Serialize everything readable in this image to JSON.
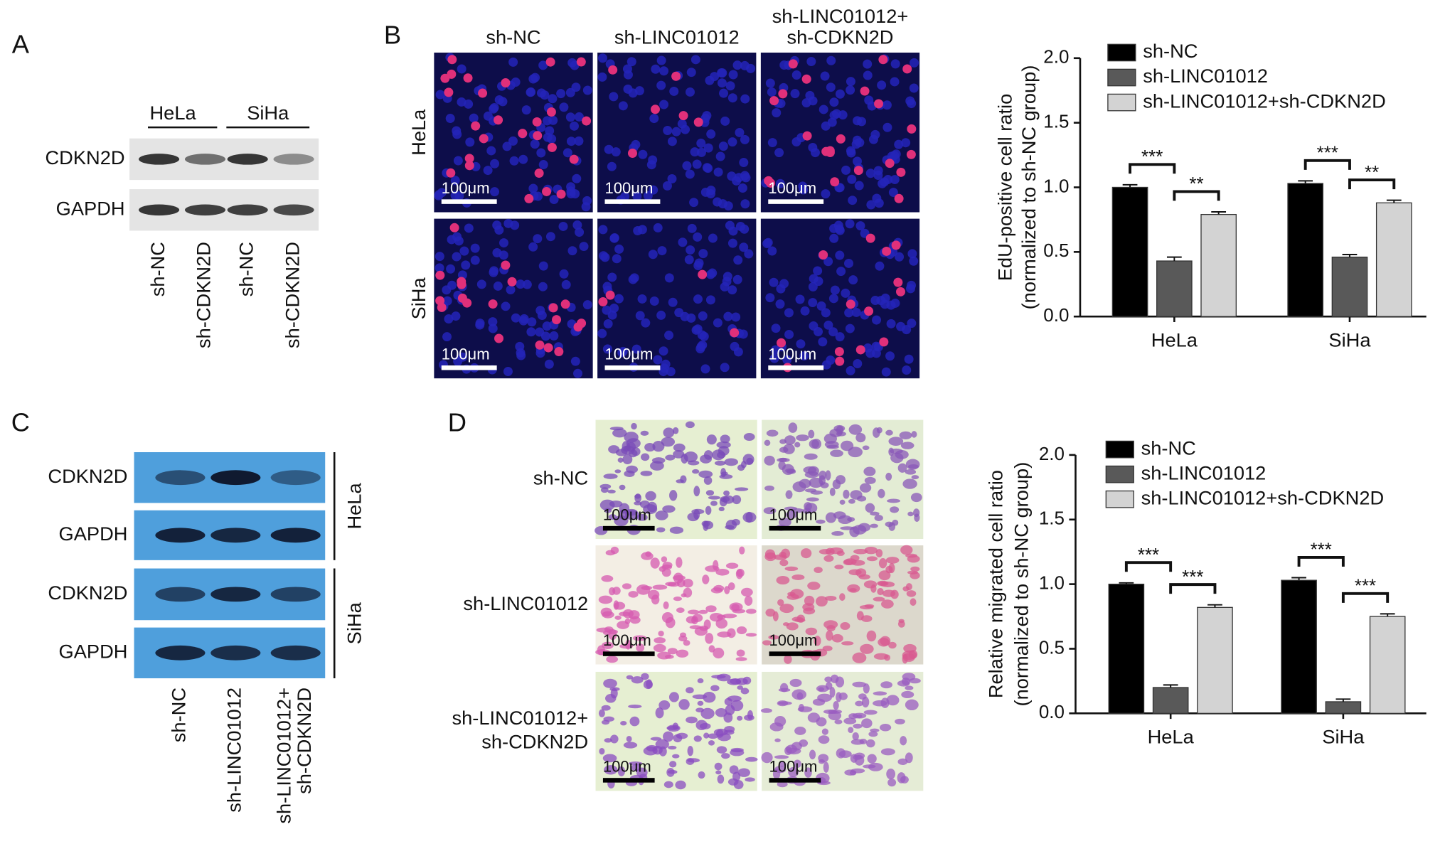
{
  "panels": {
    "a": {
      "letter": "A",
      "cell_lines": [
        "HeLa",
        "SiHa"
      ],
      "rows": [
        "CDKN2D",
        "GAPDH"
      ],
      "lanes": [
        "sh-NC",
        "sh-CDKN2D",
        "sh-NC",
        "sh-CDKN2D"
      ]
    },
    "b": {
      "letter": "B",
      "columns": [
        [
          "sh-NC"
        ],
        [
          "sh-LINC01012"
        ],
        [
          "sh-LINC01012+",
          "sh-CDKN2D"
        ]
      ],
      "rows": [
        "HeLa",
        "SiHa"
      ],
      "scale_bar": "100μm"
    },
    "c": {
      "letter": "C",
      "rows": [
        "CDKN2D",
        "GAPDH",
        "CDKN2D",
        "GAPDH"
      ],
      "groups": [
        "HeLa",
        "SiHa"
      ],
      "lanes": [
        [
          "sh-NC"
        ],
        [
          "sh-LINC01012"
        ],
        [
          "sh-LINC01012+",
          "sh-CDKN2D"
        ]
      ]
    },
    "d": {
      "letter": "D",
      "rows": [
        [
          "sh-NC"
        ],
        [
          "sh-LINC01012"
        ],
        [
          "sh-LINC01012+",
          "sh-CDKN2D"
        ]
      ],
      "scale_bar": "100μm"
    }
  },
  "chart_data": [
    {
      "type": "bar",
      "y_label": [
        "EdU-positive cell ratio",
        "(normalized to sh-NC group)"
      ],
      "categories": [
        "HeLa",
        "SiHa"
      ],
      "series": [
        {
          "name": "sh-NC",
          "color": "#000000",
          "values": [
            1.0,
            1.03
          ],
          "errors": [
            0.02,
            0.02
          ]
        },
        {
          "name": "sh-LINC01012",
          "color": "#595959",
          "values": [
            0.43,
            0.46
          ],
          "errors": [
            0.03,
            0.02
          ]
        },
        {
          "name": "sh-LINC01012+sh-CDKN2D",
          "color": "#d3d3d3",
          "values": [
            0.79,
            0.88
          ],
          "errors": [
            0.02,
            0.02
          ]
        }
      ],
      "annotations": [
        "***",
        "**",
        "***",
        "**"
      ],
      "ylim": [
        0,
        2
      ],
      "yticks": [
        {
          "value": 0,
          "label": "0.0"
        },
        {
          "value": 0.5,
          "label": "0.5"
        },
        {
          "value": 1,
          "label": "1.0"
        },
        {
          "value": 1.5,
          "label": "1.5"
        },
        {
          "value": 2,
          "label": "2.0"
        }
      ],
      "legend": "top-left"
    },
    {
      "type": "bar",
      "y_label": [
        "Relative migrated cell ratio",
        "(normalized to sh-NC group)"
      ],
      "categories": [
        "HeLa",
        "SiHa"
      ],
      "series": [
        {
          "name": "sh-NC",
          "color": "#000000",
          "values": [
            1.0,
            1.03
          ],
          "errors": [
            0.01,
            0.02
          ]
        },
        {
          "name": "sh-LINC01012",
          "color": "#595959",
          "values": [
            0.2,
            0.09
          ],
          "errors": [
            0.02,
            0.02
          ]
        },
        {
          "name": "sh-LINC01012+sh-CDKN2D",
          "color": "#d3d3d3",
          "values": [
            0.82,
            0.75
          ],
          "errors": [
            0.02,
            0.02
          ]
        }
      ],
      "annotations": [
        "***",
        "***",
        "***",
        "***"
      ],
      "ylim": [
        0,
        2
      ],
      "yticks": [
        {
          "value": 0,
          "label": "0.0"
        },
        {
          "value": 0.5,
          "label": "0.5"
        },
        {
          "value": 1,
          "label": "1.0"
        },
        {
          "value": 1.5,
          "label": "1.5"
        },
        {
          "value": 2,
          "label": "2.0"
        }
      ],
      "legend": "top-left"
    }
  ]
}
